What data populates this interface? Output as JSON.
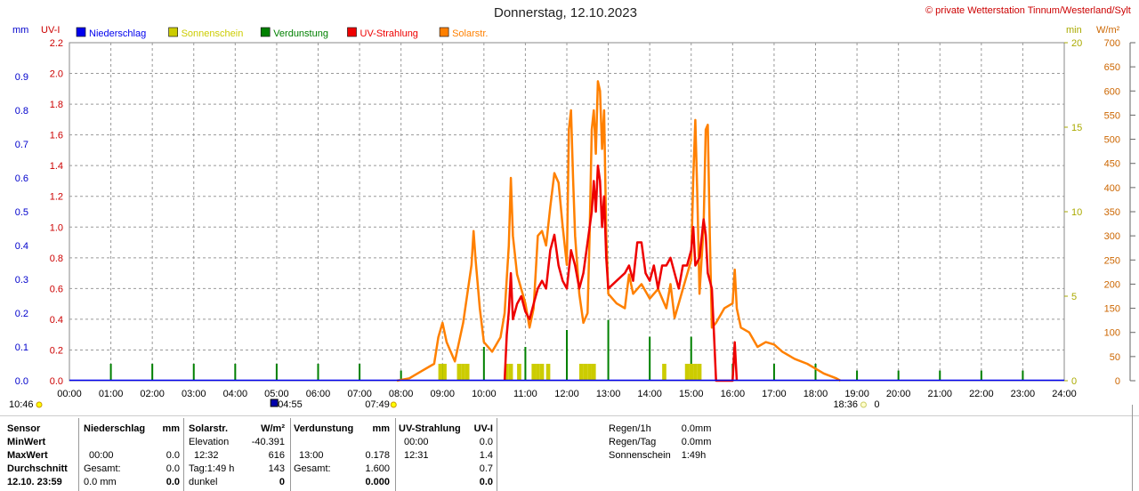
{
  "header": {
    "title": "Donnerstag, 12.10.2023",
    "copyright": "© private Wetterstation Tinnum/Westerland/Sylt"
  },
  "legend": [
    {
      "label": "Niederschlag",
      "color": "#0000ee"
    },
    {
      "label": "Sonnenschein",
      "color": "#cccc00"
    },
    {
      "label": "Verdunstung",
      "color": "#008000"
    },
    {
      "label": "UV-Strahlung",
      "color": "#ee0000"
    },
    {
      "label": "Solarstr.",
      "color": "#ff8000"
    }
  ],
  "axis_units": {
    "mm": "mm",
    "uvi": "UV-I",
    "min": "min",
    "wm2": "W/m²"
  },
  "time_markers": [
    {
      "label": "10:46",
      "hour": 0.0
    },
    {
      "label": "04:55",
      "hour": 4.92
    },
    {
      "label": "07:49",
      "hour": 7.82
    },
    {
      "label": "18:36",
      "hour": 18.6
    },
    {
      "label": "0",
      "hour": 18.9
    }
  ],
  "chart_data": {
    "type": "line",
    "x_range": [
      0,
      24
    ],
    "x_ticks": [
      "00:00",
      "01:00",
      "02:00",
      "03:00",
      "04:00",
      "05:00",
      "06:00",
      "07:00",
      "08:00",
      "09:00",
      "10:00",
      "11:00",
      "12:00",
      "13:00",
      "14:00",
      "15:00",
      "16:00",
      "17:00",
      "18:00",
      "19:00",
      "20:00",
      "21:00",
      "22:00",
      "23:00",
      "24:00"
    ],
    "axes": {
      "mm": {
        "range": [
          0,
          1.0
        ],
        "ticks": [
          "0.0",
          "0.1",
          "0.2",
          "0.3",
          "0.4",
          "0.5",
          "0.6",
          "0.7",
          "0.8",
          "0.9"
        ],
        "color": "#0000cc"
      },
      "uvi": {
        "range": [
          0,
          2.2
        ],
        "ticks": [
          "0.0",
          "0.2",
          "0.4",
          "0.6",
          "0.8",
          "1.0",
          "1.2",
          "1.4",
          "1.6",
          "1.8",
          "2.0",
          "2.2"
        ],
        "color": "#cc0000"
      },
      "min": {
        "range": [
          0,
          20
        ],
        "ticks": [
          "0",
          "5",
          "10",
          "15",
          "20"
        ],
        "color": "#aaaa00"
      },
      "wm2": {
        "range": [
          0,
          700
        ],
        "ticks": [
          "0",
          "50",
          "100",
          "150",
          "200",
          "250",
          "300",
          "350",
          "400",
          "450",
          "500",
          "550",
          "600",
          "650",
          "700"
        ],
        "color": "#cc6600"
      }
    },
    "series": [
      {
        "name": "Solarstr.",
        "axis": "wm2",
        "color": "#ff8000",
        "points": [
          [
            7.9,
            0
          ],
          [
            8.2,
            5
          ],
          [
            8.5,
            20
          ],
          [
            8.8,
            35
          ],
          [
            8.9,
            90
          ],
          [
            9.0,
            120
          ],
          [
            9.1,
            80
          ],
          [
            9.3,
            40
          ],
          [
            9.5,
            120
          ],
          [
            9.7,
            240
          ],
          [
            9.75,
            310
          ],
          [
            9.8,
            250
          ],
          [
            9.9,
            150
          ],
          [
            10.0,
            80
          ],
          [
            10.2,
            60
          ],
          [
            10.4,
            90
          ],
          [
            10.5,
            140
          ],
          [
            10.6,
            280
          ],
          [
            10.65,
            420
          ],
          [
            10.7,
            300
          ],
          [
            10.8,
            220
          ],
          [
            10.9,
            190
          ],
          [
            11.0,
            160
          ],
          [
            11.1,
            110
          ],
          [
            11.2,
            150
          ],
          [
            11.3,
            300
          ],
          [
            11.4,
            310
          ],
          [
            11.5,
            280
          ],
          [
            11.6,
            360
          ],
          [
            11.7,
            430
          ],
          [
            11.8,
            410
          ],
          [
            11.9,
            320
          ],
          [
            12.0,
            240
          ],
          [
            12.05,
            520
          ],
          [
            12.1,
            560
          ],
          [
            12.15,
            420
          ],
          [
            12.2,
            300
          ],
          [
            12.3,
            180
          ],
          [
            12.4,
            120
          ],
          [
            12.5,
            140
          ],
          [
            12.55,
            300
          ],
          [
            12.6,
            520
          ],
          [
            12.65,
            560
          ],
          [
            12.7,
            470
          ],
          [
            12.75,
            620
          ],
          [
            12.8,
            600
          ],
          [
            12.85,
            480
          ],
          [
            12.9,
            560
          ],
          [
            12.95,
            300
          ],
          [
            13.0,
            180
          ],
          [
            13.2,
            160
          ],
          [
            13.4,
            150
          ],
          [
            13.5,
            220
          ],
          [
            13.6,
            180
          ],
          [
            13.8,
            200
          ],
          [
            14.0,
            170
          ],
          [
            14.2,
            190
          ],
          [
            14.4,
            150
          ],
          [
            14.5,
            200
          ],
          [
            14.6,
            130
          ],
          [
            14.8,
            190
          ],
          [
            15.0,
            250
          ],
          [
            15.05,
            420
          ],
          [
            15.1,
            540
          ],
          [
            15.15,
            380
          ],
          [
            15.2,
            180
          ],
          [
            15.3,
            320
          ],
          [
            15.35,
            520
          ],
          [
            15.4,
            530
          ],
          [
            15.45,
            300
          ],
          [
            15.5,
            110
          ],
          [
            15.6,
            120
          ],
          [
            15.8,
            150
          ],
          [
            16.0,
            160
          ],
          [
            16.05,
            230
          ],
          [
            16.1,
            150
          ],
          [
            16.2,
            110
          ],
          [
            16.4,
            100
          ],
          [
            16.6,
            70
          ],
          [
            16.8,
            80
          ],
          [
            17.0,
            75
          ],
          [
            17.2,
            60
          ],
          [
            17.5,
            45
          ],
          [
            17.8,
            35
          ],
          [
            18.0,
            25
          ],
          [
            18.2,
            15
          ],
          [
            18.5,
            5
          ],
          [
            18.6,
            0
          ]
        ]
      },
      {
        "name": "UV-Strahlung",
        "axis": "uvi",
        "color": "#ee0000",
        "points": [
          [
            10.5,
            0
          ],
          [
            10.55,
            0.3
          ],
          [
            10.6,
            0.45
          ],
          [
            10.65,
            0.7
          ],
          [
            10.7,
            0.4
          ],
          [
            10.8,
            0.5
          ],
          [
            10.9,
            0.55
          ],
          [
            11.0,
            0.45
          ],
          [
            11.1,
            0.4
          ],
          [
            11.2,
            0.5
          ],
          [
            11.3,
            0.6
          ],
          [
            11.4,
            0.65
          ],
          [
            11.5,
            0.6
          ],
          [
            11.6,
            0.85
          ],
          [
            11.7,
            0.95
          ],
          [
            11.8,
            0.75
          ],
          [
            11.9,
            0.65
          ],
          [
            12.0,
            0.6
          ],
          [
            12.1,
            0.85
          ],
          [
            12.2,
            0.75
          ],
          [
            12.3,
            0.6
          ],
          [
            12.4,
            0.7
          ],
          [
            12.5,
            0.9
          ],
          [
            12.6,
            1.1
          ],
          [
            12.65,
            1.3
          ],
          [
            12.7,
            1.1
          ],
          [
            12.75,
            1.4
          ],
          [
            12.8,
            1.3
          ],
          [
            12.85,
            1.0
          ],
          [
            12.9,
            1.2
          ],
          [
            12.95,
            0.8
          ],
          [
            13.0,
            0.6
          ],
          [
            13.2,
            0.65
          ],
          [
            13.4,
            0.7
          ],
          [
            13.5,
            0.75
          ],
          [
            13.6,
            0.65
          ],
          [
            13.7,
            0.9
          ],
          [
            13.8,
            0.9
          ],
          [
            13.9,
            0.7
          ],
          [
            14.0,
            0.65
          ],
          [
            14.1,
            0.75
          ],
          [
            14.2,
            0.6
          ],
          [
            14.3,
            0.75
          ],
          [
            14.4,
            0.75
          ],
          [
            14.5,
            0.8
          ],
          [
            14.6,
            0.7
          ],
          [
            14.7,
            0.6
          ],
          [
            14.8,
            0.75
          ],
          [
            14.9,
            0.75
          ],
          [
            15.0,
            0.85
          ],
          [
            15.05,
            1.0
          ],
          [
            15.1,
            0.75
          ],
          [
            15.2,
            0.8
          ],
          [
            15.3,
            1.05
          ],
          [
            15.35,
            0.95
          ],
          [
            15.4,
            0.7
          ],
          [
            15.5,
            0.6
          ],
          [
            15.55,
            0.3
          ],
          [
            15.6,
            0.0
          ],
          [
            16.0,
            0.0
          ],
          [
            16.05,
            0.25
          ],
          [
            16.1,
            0.0
          ]
        ]
      }
    ],
    "bars": [
      {
        "name": "Verdunstung",
        "axis": "mm",
        "color": "#008000",
        "width_h": 0.04,
        "data": [
          [
            1,
            0.05
          ],
          [
            2,
            0.05
          ],
          [
            3,
            0.05
          ],
          [
            4,
            0.05
          ],
          [
            5,
            0.05
          ],
          [
            6,
            0.05
          ],
          [
            7,
            0.05
          ],
          [
            8,
            0.03
          ],
          [
            9,
            0.05
          ],
          [
            10,
            0.1
          ],
          [
            11,
            0.1
          ],
          [
            12,
            0.15
          ],
          [
            13,
            0.18
          ],
          [
            14,
            0.13
          ],
          [
            15,
            0.13
          ],
          [
            16,
            0.05
          ],
          [
            17,
            0.05
          ],
          [
            18,
            0.05
          ],
          [
            19,
            0.03
          ],
          [
            20,
            0.03
          ],
          [
            21,
            0.03
          ],
          [
            22,
            0.03
          ],
          [
            23,
            0.03
          ]
        ]
      },
      {
        "name": "Sonnenschein",
        "axis": "min",
        "color": "#cccc00",
        "width_h": 0.1,
        "data": [
          [
            8.95,
            1
          ],
          [
            9.05,
            1
          ],
          [
            9.4,
            1
          ],
          [
            9.5,
            1
          ],
          [
            9.6,
            1
          ],
          [
            10.55,
            1
          ],
          [
            10.65,
            1
          ],
          [
            10.85,
            1
          ],
          [
            11.2,
            1
          ],
          [
            11.3,
            1
          ],
          [
            11.4,
            1
          ],
          [
            11.55,
            1
          ],
          [
            12.35,
            1
          ],
          [
            12.45,
            1
          ],
          [
            12.55,
            1
          ],
          [
            12.65,
            1
          ],
          [
            14.35,
            1
          ],
          [
            14.9,
            1
          ],
          [
            15.0,
            1
          ],
          [
            15.1,
            1
          ],
          [
            15.2,
            1
          ]
        ]
      }
    ]
  },
  "stats_table": {
    "sensor_col": [
      "Sensor",
      "MinWert",
      "MaxWert",
      "Durchschnitt",
      "12.10. 23:59"
    ],
    "niederschlag": {
      "header": "Niederschlag",
      "unit": "mm",
      "rows": [
        [
          "",
          ""
        ],
        [
          "00:00",
          "0.0"
        ],
        [
          "Gesamt:",
          "0.0"
        ],
        [
          "0.0 mm",
          "0.0"
        ]
      ]
    },
    "solar": {
      "header": "Solarstr.",
      "unit": "W/m²",
      "rows": [
        [
          "Elevation",
          "-40.391"
        ],
        [
          "12:32",
          "616"
        ],
        [
          "Tag:1:49 h",
          "143"
        ],
        [
          "dunkel",
          "0"
        ]
      ]
    },
    "verdunstung": {
      "header": "Verdunstung",
      "unit": "mm",
      "rows": [
        [
          "",
          ""
        ],
        [
          "13:00",
          "0.178"
        ],
        [
          "Gesamt:",
          "1.600"
        ],
        [
          "",
          "0.000"
        ]
      ]
    },
    "uv": {
      "header": "UV-Strahlung",
      "unit": "UV-I",
      "rows": [
        [
          "00:00",
          "0.0"
        ],
        [
          "12:31",
          "1.4"
        ],
        [
          "",
          "0.7"
        ],
        [
          "",
          "0.0"
        ]
      ]
    }
  },
  "summary": [
    {
      "label": "Regen/1h",
      "value": "0.0mm"
    },
    {
      "label": "Regen/Tag",
      "value": "0.0mm"
    },
    {
      "label": "Sonnenschein",
      "value": "1:49h"
    }
  ]
}
